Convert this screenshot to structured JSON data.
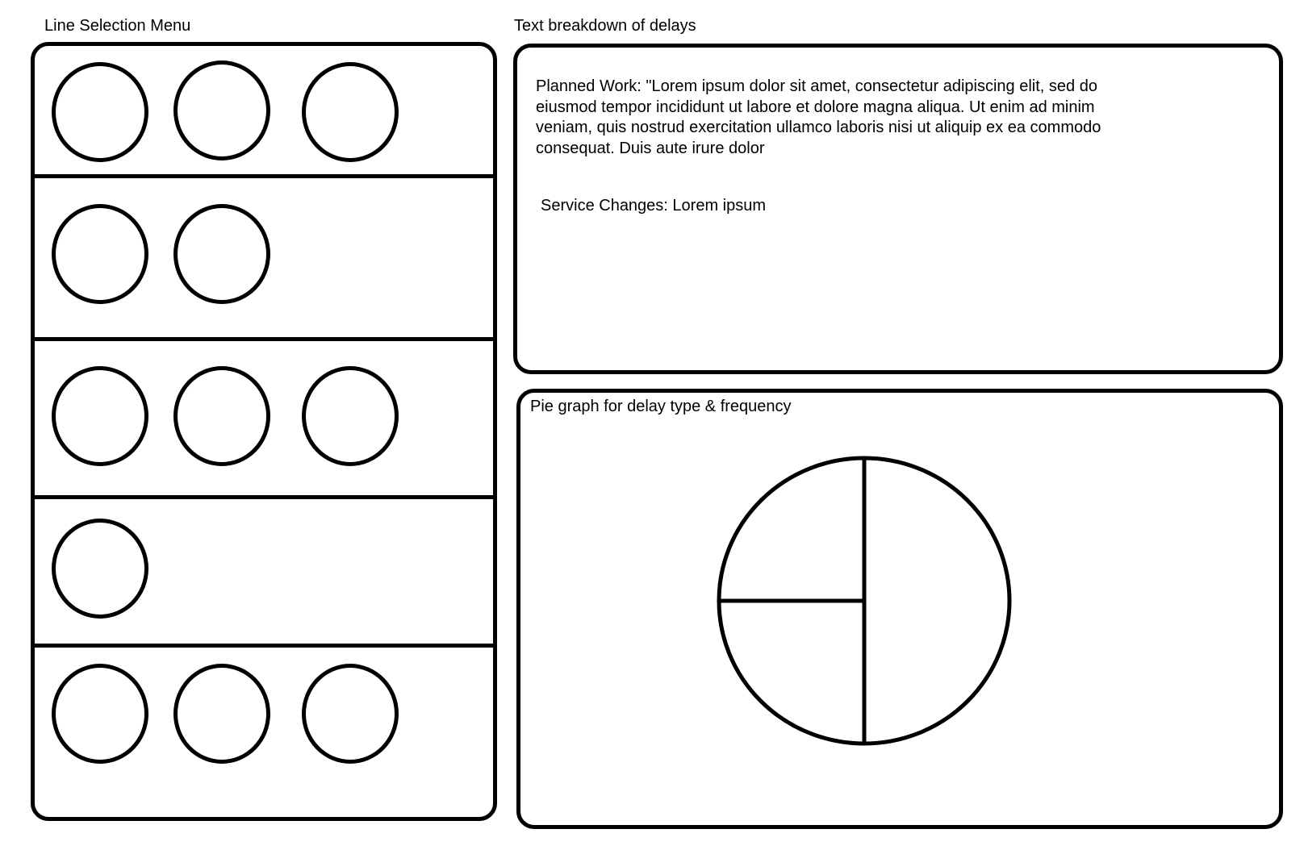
{
  "menu": {
    "title": "Line Selection Menu",
    "rows": [
      {
        "circle_count": 3
      },
      {
        "circle_count": 2
      },
      {
        "circle_count": 3
      },
      {
        "circle_count": 1
      },
      {
        "circle_count": 3
      }
    ]
  },
  "text_breakdown": {
    "title": "Text breakdown of delays",
    "planned_work": "Planned Work: \"Lorem ipsum dolor sit amet, consectetur adipiscing elit, sed do eiusmod tempor incididunt ut labore et dolore magna aliqua. Ut enim ad minim veniam, quis nostrud exercitation ullamco laboris nisi ut aliquip ex ea commodo consequat. Duis aute irure dolor",
    "service_changes": "Service Changes: Lorem ipsum"
  },
  "pie_panel": {
    "title": "Pie graph for delay type & frequency"
  },
  "chart_data": {
    "type": "pie",
    "title": "Pie graph for delay type & frequency",
    "slices": [
      {
        "value": 50
      },
      {
        "value": 25
      },
      {
        "value": 25
      }
    ]
  }
}
